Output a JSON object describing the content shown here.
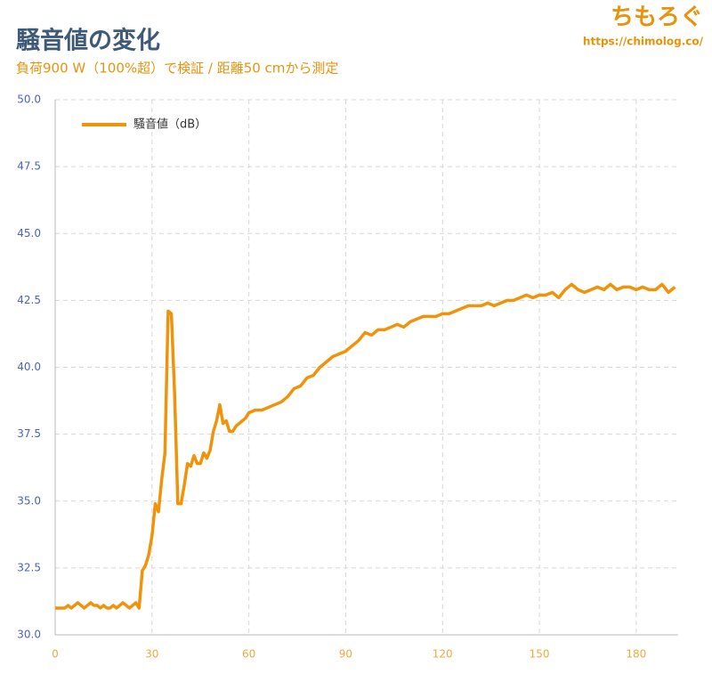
{
  "chart_data": {
    "type": "line",
    "title": "騒音値の変化",
    "subtitle": "負荷900 W（100%超）で検証 / 距離50 cmから測定",
    "brand": "ちもろぐ",
    "url": "https://chimolog.co/",
    "x": [
      0,
      1,
      2,
      3,
      4,
      5,
      6,
      7,
      8,
      9,
      10,
      11,
      12,
      13,
      14,
      15,
      16,
      17,
      18,
      19,
      20,
      21,
      22,
      23,
      24,
      25,
      26,
      27,
      28,
      29,
      30,
      31,
      32,
      33,
      34,
      35,
      36,
      37,
      38,
      39,
      40,
      41,
      42,
      43,
      44,
      45,
      46,
      47,
      48,
      49,
      50,
      51,
      52,
      53,
      54,
      55,
      56,
      57,
      58,
      59,
      60,
      62,
      64,
      66,
      68,
      70,
      72,
      74,
      76,
      78,
      80,
      82,
      84,
      86,
      88,
      90,
      92,
      94,
      96,
      98,
      100,
      102,
      104,
      106,
      108,
      110,
      112,
      114,
      116,
      118,
      120,
      122,
      124,
      126,
      128,
      130,
      132,
      134,
      136,
      138,
      140,
      142,
      144,
      146,
      148,
      150,
      152,
      154,
      156,
      158,
      160,
      162,
      164,
      166,
      168,
      170,
      172,
      174,
      176,
      178,
      180,
      182,
      184,
      186,
      188,
      190,
      192
    ],
    "series": [
      {
        "name": "騒音値（dB）",
        "color": "#f0930a",
        "values": [
          31.0,
          31.0,
          31.0,
          31.0,
          31.1,
          31.0,
          31.1,
          31.2,
          31.1,
          31.0,
          31.1,
          31.2,
          31.1,
          31.1,
          31.0,
          31.1,
          31.0,
          31.0,
          31.1,
          31.0,
          31.1,
          31.2,
          31.1,
          31.0,
          31.1,
          31.2,
          31.0,
          32.4,
          32.6,
          33.0,
          33.7,
          34.9,
          34.6,
          35.8,
          36.8,
          42.1,
          42.0,
          39.0,
          34.9,
          34.9,
          35.6,
          36.4,
          36.3,
          36.7,
          36.4,
          36.4,
          36.8,
          36.6,
          36.9,
          37.6,
          38.0,
          38.6,
          37.9,
          38.0,
          37.6,
          37.6,
          37.8,
          37.9,
          38.0,
          38.1,
          38.3,
          38.4,
          38.4,
          38.5,
          38.6,
          38.7,
          38.9,
          39.2,
          39.3,
          39.6,
          39.7,
          40.0,
          40.2,
          40.4,
          40.5,
          40.6,
          40.8,
          41.0,
          41.3,
          41.2,
          41.4,
          41.4,
          41.5,
          41.6,
          41.5,
          41.7,
          41.8,
          41.9,
          41.9,
          41.9,
          42.0,
          42.0,
          42.1,
          42.2,
          42.3,
          42.3,
          42.3,
          42.4,
          42.3,
          42.4,
          42.5,
          42.5,
          42.6,
          42.7,
          42.6,
          42.7,
          42.7,
          42.8,
          42.6,
          42.9,
          43.1,
          42.9,
          42.8,
          42.9,
          43.0,
          42.9,
          43.1,
          42.9,
          43.0,
          43.0,
          42.9,
          43.0,
          42.9,
          42.9,
          43.1,
          42.8,
          43.0
        ]
      }
    ],
    "xlim": [
      0,
      193
    ],
    "ylim": [
      30,
      50
    ],
    "xticks": [
      0,
      30,
      60,
      90,
      120,
      150,
      180
    ],
    "yticks": [
      {
        "value": 30,
        "label": "30.0"
      },
      32.5,
      {
        "value": 35,
        "label": "35.0"
      },
      37.5,
      {
        "value": 40,
        "label": "40.0"
      },
      42.5,
      {
        "value": 45,
        "label": "45.0"
      },
      47.5,
      {
        "value": 50,
        "label": "50.0"
      }
    ],
    "grid": true,
    "legend": "top-left"
  }
}
